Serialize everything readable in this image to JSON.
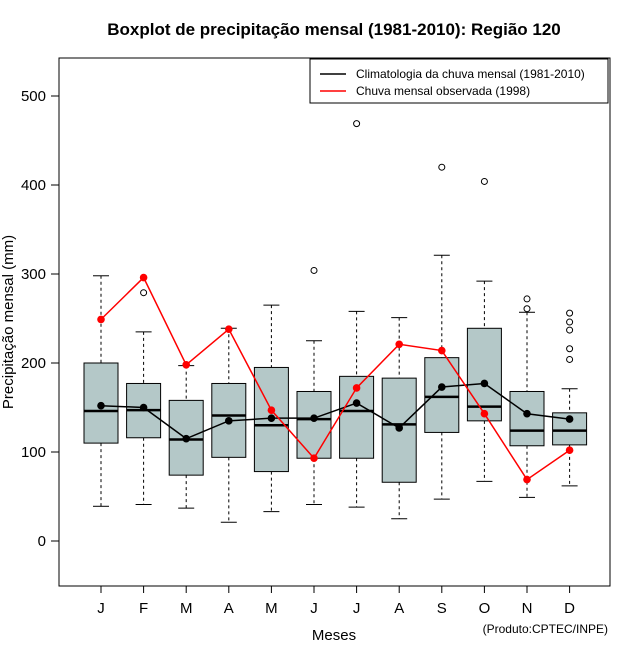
{
  "chart_data": {
    "type": "boxplot",
    "title": "Boxplot de precipitação mensal (1981-2010): Região 120",
    "xlabel": "Meses",
    "ylabel": "Precipitação mensal (mm)",
    "ylim": [
      -50,
      540
    ],
    "yticks": [
      0,
      100,
      200,
      300,
      400,
      500
    ],
    "categories": [
      "J",
      "F",
      "M",
      "A",
      "M",
      "J",
      "J",
      "A",
      "S",
      "O",
      "N",
      "D"
    ],
    "boxes": [
      {
        "min": 39,
        "q1": 110,
        "median": 146,
        "q3": 200,
        "max": 298,
        "outliers": []
      },
      {
        "min": 41,
        "q1": 116,
        "median": 147,
        "q3": 177,
        "max": 235,
        "outliers": [
          279
        ]
      },
      {
        "min": 37,
        "q1": 74,
        "median": 114,
        "q3": 158,
        "max": 197,
        "outliers": []
      },
      {
        "min": 21,
        "q1": 94,
        "median": 141,
        "q3": 177,
        "max": 239,
        "outliers": []
      },
      {
        "min": 33,
        "q1": 78,
        "median": 130,
        "q3": 195,
        "max": 265,
        "outliers": []
      },
      {
        "min": 41,
        "q1": 93,
        "median": 137,
        "q3": 168,
        "max": 225,
        "outliers": [
          304
        ]
      },
      {
        "min": 38,
        "q1": 93,
        "median": 146,
        "q3": 185,
        "max": 258,
        "outliers": [
          469
        ]
      },
      {
        "min": 25,
        "q1": 66,
        "median": 131,
        "q3": 183,
        "max": 251,
        "outliers": []
      },
      {
        "min": 47,
        "q1": 122,
        "median": 162,
        "q3": 206,
        "max": 321,
        "outliers": [
          420
        ]
      },
      {
        "min": 67,
        "q1": 135,
        "median": 151,
        "q3": 239,
        "max": 292,
        "outliers": [
          404
        ]
      },
      {
        "min": 49,
        "q1": 107,
        "median": 124,
        "q3": 168,
        "max": 257,
        "outliers": [
          261,
          272
        ]
      },
      {
        "min": 62,
        "q1": 108,
        "median": 124,
        "q3": 144,
        "max": 171,
        "outliers": [
          204,
          216,
          237,
          246,
          256
        ]
      }
    ],
    "series": [
      {
        "name": "Climatologia da chuva mensal (1981-2010)",
        "color": "#000000",
        "values": [
          152,
          150,
          115,
          135,
          138,
          138,
          155,
          127,
          173,
          177,
          143,
          137
        ]
      },
      {
        "name": "Chuva mensal observada (1998)",
        "color": "#ff0000",
        "values": [
          249,
          296,
          198,
          238,
          147,
          93,
          172,
          221,
          214,
          143,
          69,
          102
        ]
      }
    ],
    "legend_position": "top-right",
    "box_color": "#b4c8c8",
    "credit": "(Produto:CPTEC/INPE)"
  }
}
